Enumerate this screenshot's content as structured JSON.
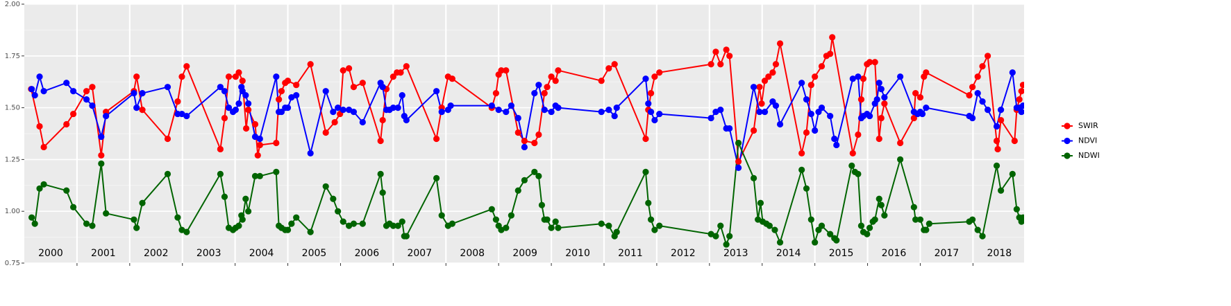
{
  "chart_data": {
    "type": "line",
    "xlim": [
      2000,
      2018.97
    ],
    "ylim": [
      0.75,
      2.0
    ],
    "xticks": [
      2001,
      2002,
      2003,
      2004,
      2005,
      2006,
      2007,
      2008,
      2009,
      2010,
      2011,
      2012,
      2013,
      2014,
      2015,
      2016,
      2017,
      2018
    ],
    "yticks": [
      0.75,
      {
        "value": 1,
        "label": "1.00"
      },
      1.25,
      {
        "value": 1.5,
        "label": "1.50"
      },
      1.75,
      {
        "value": 2,
        "label": "2.00"
      }
    ],
    "year_labels": [
      "2000",
      "2001",
      "2002",
      "2003",
      "2004",
      "2005",
      "2006",
      "2007",
      "2008",
      "2009",
      "2010",
      "2011",
      "2012",
      "2013",
      "2014",
      "2015",
      "2016",
      "2017",
      "2018"
    ],
    "grid": true,
    "legend_position": "right",
    "series": [
      {
        "name": "SWIR",
        "color": "#ff0000",
        "x": [
          2000.13,
          2000.29,
          2000.37,
          2000.8,
          2000.93,
          2001.18,
          2001.29,
          2001.46,
          2001.55,
          2002.08,
          2002.13,
          2002.24,
          2002.72,
          2002.91,
          2002.99,
          2003.08,
          2003.72,
          2003.8,
          2003.88,
          2004.01,
          2004.07,
          2004.14,
          2004.21,
          2004.25,
          2004.38,
          2004.43,
          2004.47,
          2004.78,
          2004.83,
          2004.88,
          2004.95,
          2005.0,
          2005.16,
          2005.43,
          2005.72,
          2005.89,
          2005.99,
          2006.05,
          2006.16,
          2006.25,
          2006.42,
          2006.76,
          2006.8,
          2006.87,
          2007.0,
          2007.07,
          2007.14,
          2007.25,
          2007.82,
          2007.92,
          2008.04,
          2008.12,
          2008.87,
          2008.95,
          2009.0,
          2009.05,
          2009.14,
          2009.37,
          2009.49,
          2009.68,
          2009.76,
          2009.87,
          2009.92,
          2010.0,
          2010.08,
          2010.13,
          2010.95,
          2011.09,
          2011.2,
          2011.79,
          2011.84,
          2011.89,
          2011.96,
          2012.05,
          2013.03,
          2013.12,
          2013.21,
          2013.32,
          2013.38,
          2013.55,
          2013.84,
          2013.95,
          2013.99,
          2014.05,
          2014.12,
          2014.2,
          2014.26,
          2014.34,
          2014.75,
          2014.84,
          2014.93,
          2015.0,
          2015.13,
          2015.22,
          2015.29,
          2015.33,
          2015.72,
          2015.82,
          2015.88,
          2015.92,
          2015.99,
          2016.04,
          2016.14,
          2016.22,
          2016.26,
          2016.32,
          2016.62,
          2016.88,
          2016.91,
          2017.0,
          2017.07,
          2017.11,
          2017.93,
          2017.99,
          2018.09,
          2018.18,
          2018.28,
          2018.45,
          2018.47,
          2018.53,
          2018.79,
          2018.83,
          2018.88,
          2018.92,
          2018.95
        ],
        "values": [
          1.59,
          1.41,
          1.31,
          1.42,
          1.47,
          1.58,
          1.6,
          1.27,
          1.48,
          1.58,
          1.65,
          1.49,
          1.35,
          1.53,
          1.65,
          1.7,
          1.3,
          1.45,
          1.65,
          1.65,
          1.67,
          1.63,
          1.4,
          1.49,
          1.42,
          1.27,
          1.32,
          1.33,
          1.54,
          1.58,
          1.62,
          1.63,
          1.61,
          1.71,
          1.38,
          1.43,
          1.47,
          1.68,
          1.69,
          1.6,
          1.62,
          1.34,
          1.44,
          1.59,
          1.65,
          1.67,
          1.67,
          1.7,
          1.35,
          1.5,
          1.65,
          1.64,
          1.5,
          1.57,
          1.66,
          1.68,
          1.68,
          1.38,
          1.34,
          1.33,
          1.37,
          1.57,
          1.6,
          1.65,
          1.63,
          1.68,
          1.63,
          1.69,
          1.71,
          1.35,
          1.49,
          1.57,
          1.65,
          1.67,
          1.71,
          1.77,
          1.71,
          1.78,
          1.75,
          1.24,
          1.39,
          1.6,
          1.52,
          1.63,
          1.65,
          1.67,
          1.71,
          1.81,
          1.28,
          1.38,
          1.61,
          1.65,
          1.7,
          1.75,
          1.76,
          1.84,
          1.28,
          1.37,
          1.54,
          1.64,
          1.71,
          1.72,
          1.72,
          1.35,
          1.45,
          1.52,
          1.33,
          1.45,
          1.57,
          1.55,
          1.65,
          1.67,
          1.56,
          1.6,
          1.65,
          1.7,
          1.75,
          1.34,
          1.3,
          1.44,
          1.34,
          1.49,
          1.54,
          1.58,
          1.61
        ]
      },
      {
        "name": "NDVI",
        "color": "#0000ff",
        "x": [
          2000.14,
          2000.2,
          2000.29,
          2000.37,
          2000.8,
          2000.93,
          2001.18,
          2001.29,
          2001.46,
          2001.55,
          2002.08,
          2002.13,
          2002.24,
          2002.72,
          2002.91,
          2002.99,
          2003.08,
          2003.72,
          2003.8,
          2003.88,
          2003.96,
          2004.01,
          2004.07,
          2004.12,
          2004.14,
          2004.2,
          2004.25,
          2004.38,
          2004.47,
          2004.78,
          2004.83,
          2004.88,
          2004.95,
          2005.0,
          2005.07,
          2005.16,
          2005.43,
          2005.72,
          2005.86,
          2005.95,
          2006.05,
          2006.16,
          2006.25,
          2006.42,
          2006.76,
          2006.8,
          2006.87,
          2006.93,
          2007.0,
          2007.09,
          2007.17,
          2007.21,
          2007.25,
          2007.82,
          2007.92,
          2008.04,
          2008.09,
          2008.87,
          2009.0,
          2009.14,
          2009.24,
          2009.37,
          2009.49,
          2009.68,
          2009.76,
          2009.87,
          2010.0,
          2010.08,
          2010.13,
          2010.95,
          2011.09,
          2011.2,
          2011.24,
          2011.79,
          2011.84,
          2011.89,
          2011.96,
          2012.05,
          2013.03,
          2013.12,
          2013.21,
          2013.32,
          2013.38,
          2013.55,
          2013.84,
          2013.95,
          2014.05,
          2014.2,
          2014.26,
          2014.34,
          2014.75,
          2014.84,
          2014.93,
          2015.0,
          2015.07,
          2015.13,
          2015.29,
          2015.37,
          2015.41,
          2015.72,
          2015.82,
          2015.88,
          2015.92,
          2015.99,
          2016.04,
          2016.14,
          2016.18,
          2016.22,
          2016.26,
          2016.32,
          2016.62,
          2016.88,
          2016.95,
          2017.0,
          2017.04,
          2017.11,
          2017.93,
          2017.99,
          2018.09,
          2018.18,
          2018.28,
          2018.45,
          2018.53,
          2018.75,
          2018.83,
          2018.88,
          2018.92,
          2018.95
        ],
        "values": [
          1.59,
          1.56,
          1.65,
          1.58,
          1.62,
          1.58,
          1.54,
          1.51,
          1.36,
          1.46,
          1.57,
          1.5,
          1.57,
          1.6,
          1.47,
          1.47,
          1.46,
          1.6,
          1.58,
          1.5,
          1.48,
          1.49,
          1.52,
          1.6,
          1.58,
          1.56,
          1.52,
          1.36,
          1.35,
          1.65,
          1.48,
          1.48,
          1.5,
          1.5,
          1.55,
          1.56,
          1.28,
          1.58,
          1.48,
          1.5,
          1.49,
          1.49,
          1.48,
          1.43,
          1.62,
          1.6,
          1.49,
          1.49,
          1.5,
          1.5,
          1.56,
          1.46,
          1.44,
          1.58,
          1.48,
          1.49,
          1.51,
          1.51,
          1.49,
          1.48,
          1.51,
          1.45,
          1.31,
          1.57,
          1.61,
          1.49,
          1.48,
          1.51,
          1.5,
          1.48,
          1.49,
          1.46,
          1.5,
          1.64,
          1.52,
          1.48,
          1.44,
          1.47,
          1.45,
          1.48,
          1.49,
          1.4,
          1.4,
          1.21,
          1.6,
          1.48,
          1.48,
          1.53,
          1.51,
          1.42,
          1.62,
          1.54,
          1.47,
          1.39,
          1.48,
          1.5,
          1.46,
          1.35,
          1.32,
          1.64,
          1.65,
          1.45,
          1.46,
          1.47,
          1.46,
          1.52,
          1.54,
          1.62,
          1.59,
          1.55,
          1.65,
          1.48,
          1.47,
          1.48,
          1.47,
          1.5,
          1.46,
          1.45,
          1.57,
          1.53,
          1.49,
          1.41,
          1.49,
          1.67,
          1.5,
          1.5,
          1.48,
          1.51
        ]
      },
      {
        "name": "NDWI",
        "color": "#006400",
        "x": [
          2000.14,
          2000.2,
          2000.29,
          2000.37,
          2000.8,
          2000.93,
          2001.18,
          2001.29,
          2001.46,
          2001.55,
          2002.08,
          2002.13,
          2002.24,
          2002.72,
          2002.91,
          2002.99,
          2003.08,
          2003.72,
          2003.8,
          2003.88,
          2003.96,
          2004.01,
          2004.07,
          2004.12,
          2004.14,
          2004.2,
          2004.25,
          2004.38,
          2004.47,
          2004.78,
          2004.83,
          2004.88,
          2004.95,
          2005.0,
          2005.07,
          2005.16,
          2005.43,
          2005.72,
          2005.86,
          2005.95,
          2006.05,
          2006.16,
          2006.25,
          2006.42,
          2006.76,
          2006.8,
          2006.87,
          2006.93,
          2007.0,
          2007.09,
          2007.17,
          2007.21,
          2007.25,
          2007.82,
          2007.92,
          2008.04,
          2008.12,
          2008.87,
          2008.95,
          2009.0,
          2009.05,
          2009.14,
          2009.24,
          2009.37,
          2009.49,
          2009.68,
          2009.76,
          2009.82,
          2009.87,
          2009.92,
          2010.0,
          2010.08,
          2010.13,
          2010.95,
          2011.09,
          2011.2,
          2011.24,
          2011.79,
          2011.84,
          2011.89,
          2011.96,
          2012.05,
          2013.03,
          2013.12,
          2013.21,
          2013.32,
          2013.38,
          2013.55,
          2013.84,
          2013.92,
          2013.97,
          2014.01,
          2014.08,
          2014.14,
          2014.24,
          2014.34,
          2014.75,
          2014.84,
          2014.93,
          2015.0,
          2015.07,
          2015.13,
          2015.29,
          2015.37,
          2015.41,
          2015.7,
          2015.76,
          2015.82,
          2015.88,
          2015.92,
          2015.99,
          2016.04,
          2016.1,
          2016.14,
          2016.22,
          2016.26,
          2016.32,
          2016.62,
          2016.88,
          2016.91,
          2017.0,
          2017.07,
          2017.11,
          2017.17,
          2017.93,
          2017.99,
          2018.09,
          2018.18,
          2018.45,
          2018.53,
          2018.75,
          2018.83,
          2018.88,
          2018.92,
          2018.95
        ],
        "values": [
          0.97,
          0.94,
          1.11,
          1.13,
          1.1,
          1.02,
          0.94,
          0.93,
          1.23,
          0.99,
          0.96,
          0.92,
          1.04,
          1.18,
          0.97,
          0.91,
          0.9,
          1.18,
          1.07,
          0.92,
          0.91,
          0.92,
          0.93,
          0.98,
          0.96,
          1.06,
          1.0,
          1.17,
          1.17,
          1.19,
          0.93,
          0.92,
          0.91,
          0.91,
          0.94,
          0.97,
          0.9,
          1.12,
          1.06,
          1.0,
          0.95,
          0.93,
          0.94,
          0.94,
          1.18,
          1.09,
          0.93,
          0.94,
          0.93,
          0.93,
          0.95,
          0.88,
          0.88,
          1.16,
          0.98,
          0.93,
          0.94,
          1.01,
          0.96,
          0.93,
          0.91,
          0.92,
          0.98,
          1.1,
          1.15,
          1.19,
          1.17,
          1.03,
          0.96,
          0.96,
          0.92,
          0.95,
          0.92,
          0.94,
          0.93,
          0.88,
          0.9,
          1.19,
          1.04,
          0.96,
          0.91,
          0.93,
          0.89,
          0.88,
          0.93,
          0.84,
          0.88,
          1.33,
          1.16,
          0.96,
          1.04,
          0.95,
          0.94,
          0.93,
          0.91,
          0.85,
          1.2,
          1.11,
          0.96,
          0.85,
          0.91,
          0.93,
          0.89,
          0.87,
          0.86,
          1.22,
          1.19,
          1.18,
          0.93,
          0.9,
          0.89,
          0.92,
          0.95,
          0.96,
          1.06,
          1.03,
          0.98,
          1.25,
          1.02,
          0.96,
          0.96,
          0.91,
          0.91,
          0.94,
          0.95,
          0.96,
          0.91,
          0.88,
          1.22,
          1.1,
          1.18,
          1.01,
          0.97,
          0.95,
          0.97
        ]
      }
    ]
  }
}
